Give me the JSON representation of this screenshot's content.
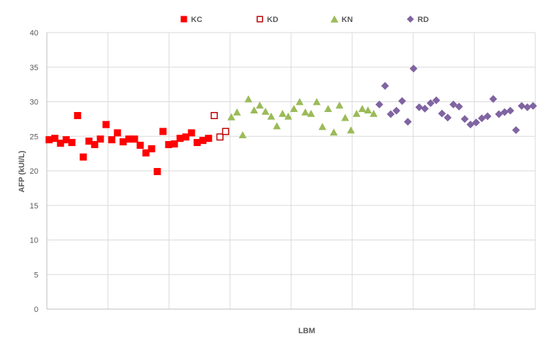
{
  "chart_data": {
    "type": "scatter",
    "title": "",
    "xlabel": "LBM",
    "ylabel": "AFP (kUI/L)",
    "ylim": [
      0,
      40
    ],
    "yticks": [
      "0",
      "5",
      "10",
      "15",
      "20",
      "25",
      "30",
      "35",
      "40"
    ],
    "xlim": [
      0,
      86
    ],
    "grid": true,
    "legend_position": "top",
    "series": [
      {
        "name": "KC",
        "marker": "square-filled",
        "color": "#ff0000",
        "x": [
          1,
          2,
          3,
          4,
          5,
          6,
          7,
          8,
          9,
          10,
          11,
          12,
          13,
          14,
          15,
          16,
          17,
          18,
          19,
          20,
          21,
          22,
          23,
          24,
          25,
          26,
          27,
          28,
          29
        ],
        "y": [
          24.5,
          24.7,
          24.0,
          24.5,
          24.1,
          28.0,
          22.0,
          24.3,
          23.8,
          24.6,
          26.7,
          24.5,
          25.5,
          24.2,
          24.6,
          24.6,
          23.7,
          22.6,
          23.2,
          19.9,
          25.7,
          23.8,
          23.9,
          24.7,
          24.9,
          25.5,
          24.1,
          24.4,
          24.7
        ]
      },
      {
        "name": "KD",
        "marker": "square-open",
        "color": "#c00000",
        "x": [
          30,
          31,
          32
        ],
        "y": [
          28.0,
          24.9,
          25.7
        ]
      },
      {
        "name": "KN",
        "marker": "triangle",
        "color": "#9bbb59",
        "x": [
          33,
          34,
          35,
          36,
          37,
          38,
          39,
          40,
          41,
          42,
          43,
          44,
          45,
          46,
          47,
          48,
          49,
          50,
          51,
          52,
          53,
          54,
          55,
          56,
          57,
          58
        ],
        "y": [
          27.8,
          28.5,
          25.2,
          30.4,
          28.8,
          29.5,
          28.6,
          27.9,
          26.5,
          28.3,
          27.9,
          29.0,
          30.0,
          28.5,
          28.3,
          30.0,
          26.4,
          29.0,
          25.6,
          29.5,
          27.7,
          25.9,
          28.3,
          29.0,
          28.8,
          28.3
        ]
      },
      {
        "name": "RD",
        "marker": "diamond",
        "color": "#8064a2",
        "x": [
          59,
          60,
          61,
          62,
          63,
          64,
          65,
          66,
          67,
          68,
          69,
          70,
          71,
          72,
          73,
          74,
          75,
          76,
          77,
          78,
          79,
          80,
          81,
          82,
          83,
          84,
          85,
          86
        ],
        "y": [
          29.6,
          32.3,
          28.2,
          28.7,
          30.1,
          27.1,
          34.8,
          29.2,
          29.0,
          29.8,
          30.2,
          28.3,
          27.7,
          29.6,
          29.3,
          27.5,
          26.7,
          27.0,
          27.6,
          27.9,
          30.4,
          28.2,
          28.5,
          28.7,
          25.9,
          29.4,
          29.2,
          29.4
        ]
      }
    ]
  }
}
